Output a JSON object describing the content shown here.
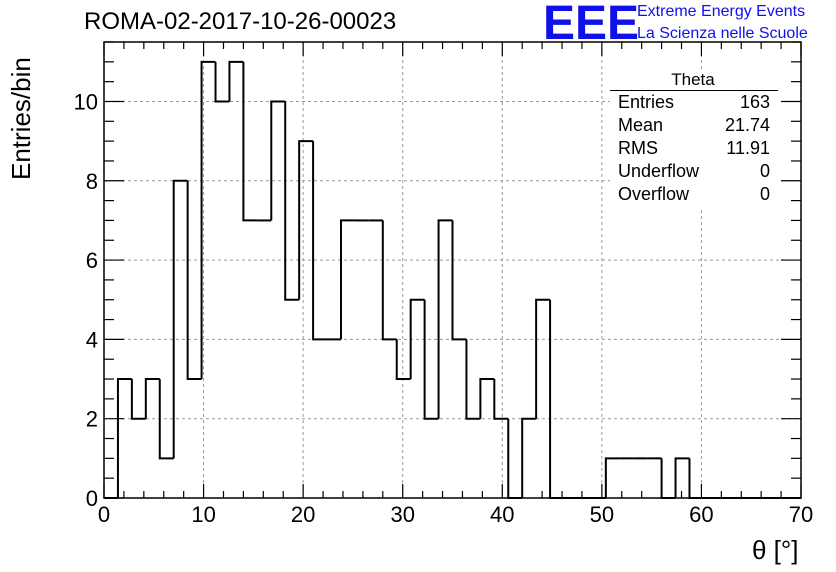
{
  "header": {
    "title": "ROMA-02-2017-10-26-00023",
    "logo_mark": "EEE",
    "logo_line1": "Extreme Energy Events",
    "logo_line2": "La Scienza nelle Scuole",
    "logo_color": "#1010e8"
  },
  "stats": {
    "title": "Theta",
    "rows": [
      {
        "key": "Entries",
        "value": "163"
      },
      {
        "key": "Mean",
        "value": "21.74"
      },
      {
        "key": "RMS",
        "value": "11.91"
      },
      {
        "key": "Underflow",
        "value": "0"
      },
      {
        "key": "Overflow",
        "value": "0"
      }
    ]
  },
  "chart_data": {
    "type": "bar",
    "style": "step-histogram",
    "xlabel": "θ [°]",
    "ylabel": "Entries/bin",
    "xlim": [
      0,
      70
    ],
    "ylim": [
      0,
      11.5
    ],
    "x_ticks": [
      0,
      10,
      20,
      30,
      40,
      50,
      60,
      70
    ],
    "y_ticks": [
      0,
      2,
      4,
      6,
      8,
      10
    ],
    "grid": true,
    "line_color": "#000000",
    "grid_color": "#9a9a9a",
    "bin_edges": [
      0,
      1.4,
      2.8,
      4.2,
      5.6,
      7,
      8.4,
      9.8,
      11.2,
      12.6,
      14,
      15.4,
      16.8,
      18.2,
      19.6,
      21,
      22.4,
      23.8,
      25.2,
      26.6,
      28,
      29.4,
      30.8,
      32.2,
      33.6,
      35,
      36.4,
      37.8,
      39.2,
      40.6,
      42,
      43.4,
      44.8,
      46.2,
      47.6,
      49,
      50.4,
      51.8,
      53.2,
      54.6,
      56,
      57.4,
      58.8,
      60.2,
      61.6,
      63,
      64.4,
      65.8,
      67.2,
      68.6,
      70
    ],
    "values": [
      0,
      3,
      2,
      3,
      1,
      8,
      3,
      11,
      10,
      11,
      7,
      7,
      10,
      5,
      9,
      4,
      4,
      7,
      7,
      7,
      4,
      3,
      5,
      2,
      7,
      4,
      2,
      3,
      2,
      0,
      2,
      5,
      0,
      0,
      0,
      0,
      1,
      1,
      1,
      1,
      0,
      1,
      0,
      0,
      0,
      0,
      0,
      0,
      0,
      0
    ]
  }
}
